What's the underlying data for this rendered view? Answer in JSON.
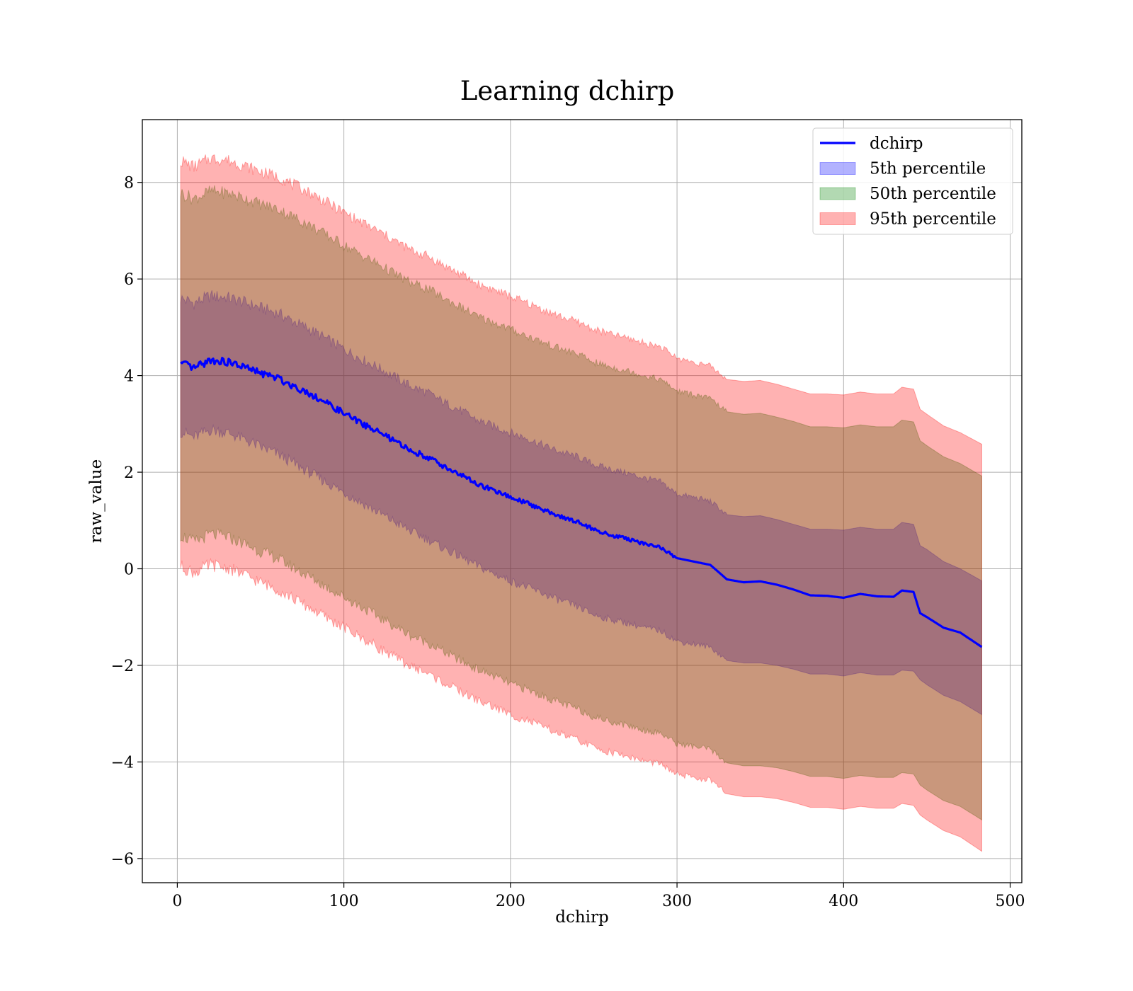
{
  "chart_data": {
    "type": "line",
    "title": "Learning dchirp",
    "xlabel": "dchirp",
    "ylabel": "raw_value",
    "xlim": [
      -21,
      507
    ],
    "ylim": [
      -6.5,
      9.3
    ],
    "xticks": [
      0,
      100,
      200,
      300,
      400,
      500
    ],
    "yticks": [
      -6,
      -4,
      -2,
      0,
      2,
      4,
      6,
      8
    ],
    "grid": true,
    "legend_position": "top-right",
    "x": [
      2,
      10,
      20,
      30,
      40,
      50,
      60,
      70,
      80,
      90,
      100,
      110,
      120,
      130,
      140,
      150,
      160,
      170,
      180,
      190,
      200,
      210,
      220,
      230,
      240,
      250,
      260,
      270,
      280,
      290,
      300,
      310,
      320,
      330,
      340,
      350,
      360,
      370,
      380,
      390,
      400,
      410,
      420,
      430,
      435,
      442,
      446,
      450,
      460,
      470,
      483
    ],
    "series": [
      {
        "name": "dchirp",
        "kind": "line",
        "color": "#0000ff",
        "values": [
          4.25,
          4.15,
          4.32,
          4.28,
          4.18,
          4.05,
          3.95,
          3.78,
          3.62,
          3.42,
          3.22,
          3.02,
          2.85,
          2.65,
          2.45,
          2.32,
          2.12,
          1.95,
          1.75,
          1.62,
          1.48,
          1.36,
          1.22,
          1.08,
          0.98,
          0.82,
          0.7,
          0.62,
          0.52,
          0.45,
          0.22,
          0.15,
          0.08,
          -0.22,
          -0.28,
          -0.26,
          -0.33,
          -0.43,
          -0.55,
          -0.56,
          -0.6,
          -0.52,
          -0.57,
          -0.58,
          -0.45,
          -0.48,
          -0.92,
          -1.0,
          -1.22,
          -1.32,
          -1.62
        ]
      },
      {
        "name": "5th percentile",
        "kind": "band",
        "color": "#0000ff",
        "lower": [
          2.85,
          2.72,
          2.88,
          2.82,
          2.68,
          2.52,
          2.38,
          2.18,
          1.98,
          1.78,
          1.58,
          1.38,
          1.18,
          0.98,
          0.78,
          0.62,
          0.42,
          0.25,
          0.06,
          -0.1,
          -0.25,
          -0.38,
          -0.52,
          -0.66,
          -0.78,
          -0.95,
          -1.05,
          -1.12,
          -1.22,
          -1.28,
          -1.5,
          -1.56,
          -1.62,
          -1.9,
          -1.95,
          -1.95,
          -2.0,
          -2.08,
          -2.18,
          -2.18,
          -2.22,
          -2.15,
          -2.2,
          -2.2,
          -2.1,
          -2.12,
          -2.3,
          -2.4,
          -2.62,
          -2.75,
          -3.02
        ],
        "upper": [
          5.6,
          5.5,
          5.65,
          5.62,
          5.52,
          5.4,
          5.3,
          5.12,
          4.95,
          4.75,
          4.55,
          4.35,
          4.18,
          3.98,
          3.78,
          3.65,
          3.45,
          3.28,
          3.08,
          2.95,
          2.82,
          2.7,
          2.55,
          2.42,
          2.32,
          2.16,
          2.06,
          1.98,
          1.88,
          1.8,
          1.55,
          1.48,
          1.4,
          1.12,
          1.08,
          1.1,
          1.02,
          0.92,
          0.82,
          0.82,
          0.8,
          0.86,
          0.82,
          0.82,
          0.96,
          0.92,
          0.48,
          0.4,
          0.15,
          0.0,
          -0.25
        ]
      },
      {
        "name": "50th percentile",
        "kind": "band",
        "color": "#008000",
        "lower": [
          0.7,
          0.55,
          0.72,
          0.66,
          0.52,
          0.36,
          0.22,
          0.02,
          -0.18,
          -0.38,
          -0.58,
          -0.78,
          -0.98,
          -1.18,
          -1.38,
          -1.52,
          -1.72,
          -1.9,
          -2.08,
          -2.22,
          -2.38,
          -2.5,
          -2.64,
          -2.78,
          -2.9,
          -3.06,
          -3.16,
          -3.24,
          -3.34,
          -3.4,
          -3.62,
          -3.68,
          -3.74,
          -4.02,
          -4.08,
          -4.08,
          -4.12,
          -4.2,
          -4.3,
          -4.3,
          -4.34,
          -4.28,
          -4.32,
          -4.32,
          -4.22,
          -4.25,
          -4.48,
          -4.58,
          -4.8,
          -4.92,
          -5.2
        ],
        "upper": [
          7.78,
          7.66,
          7.82,
          7.78,
          7.68,
          7.55,
          7.45,
          7.28,
          7.1,
          6.9,
          6.7,
          6.5,
          6.32,
          6.12,
          5.92,
          5.8,
          5.6,
          5.42,
          5.22,
          5.1,
          4.96,
          4.82,
          4.68,
          4.55,
          4.45,
          4.28,
          4.18,
          4.1,
          4.0,
          3.92,
          3.68,
          3.6,
          3.52,
          3.25,
          3.2,
          3.22,
          3.14,
          3.05,
          2.94,
          2.94,
          2.92,
          2.98,
          2.94,
          2.94,
          3.08,
          3.04,
          2.65,
          2.55,
          2.32,
          2.18,
          1.92
        ]
      },
      {
        "name": "95th percentile",
        "kind": "band",
        "color": "#ff0000",
        "lower": [
          0.05,
          -0.08,
          0.08,
          0.02,
          -0.12,
          -0.28,
          -0.42,
          -0.62,
          -0.82,
          -1.02,
          -1.22,
          -1.42,
          -1.62,
          -1.82,
          -2.02,
          -2.16,
          -2.36,
          -2.54,
          -2.72,
          -2.86,
          -3.02,
          -3.14,
          -3.28,
          -3.42,
          -3.54,
          -3.7,
          -3.8,
          -3.88,
          -3.98,
          -4.04,
          -4.26,
          -4.32,
          -4.38,
          -4.66,
          -4.72,
          -4.72,
          -4.76,
          -4.84,
          -4.94,
          -4.94,
          -4.98,
          -4.92,
          -4.96,
          -4.96,
          -4.86,
          -4.9,
          -5.1,
          -5.2,
          -5.42,
          -5.55,
          -5.85
        ],
        "upper": [
          8.45,
          8.32,
          8.5,
          8.46,
          8.35,
          8.22,
          8.12,
          7.95,
          7.78,
          7.58,
          7.38,
          7.18,
          7.0,
          6.8,
          6.6,
          6.48,
          6.28,
          6.1,
          5.9,
          5.78,
          5.64,
          5.5,
          5.36,
          5.22,
          5.12,
          4.96,
          4.86,
          4.78,
          4.68,
          4.6,
          4.36,
          4.28,
          4.2,
          3.92,
          3.88,
          3.9,
          3.82,
          3.72,
          3.62,
          3.62,
          3.6,
          3.66,
          3.62,
          3.62,
          3.76,
          3.72,
          3.3,
          3.2,
          2.96,
          2.82,
          2.58
        ]
      }
    ]
  }
}
